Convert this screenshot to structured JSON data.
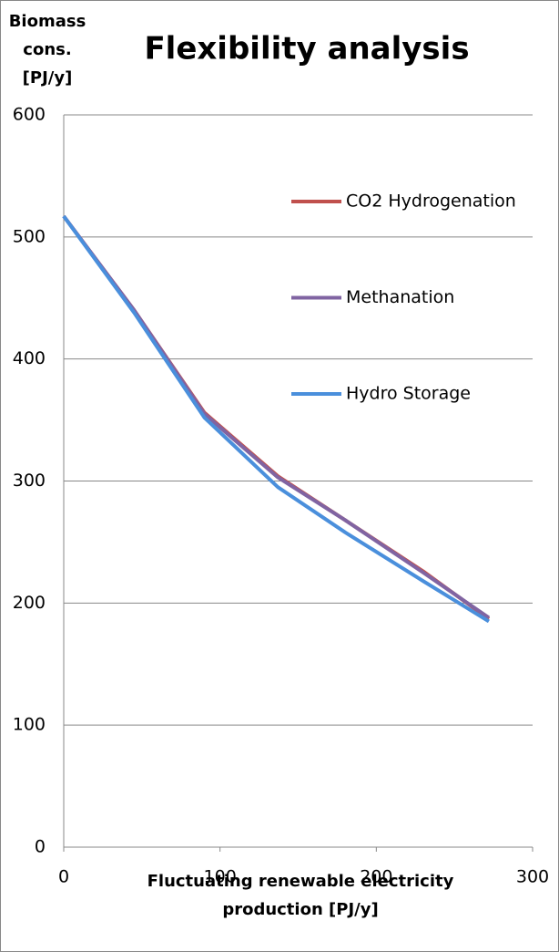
{
  "chart_data": {
    "type": "line",
    "title": "Flexibility analysis",
    "y_label": [
      "Biomass",
      "cons.",
      "[PJ/y]"
    ],
    "x_label": [
      "Fluctuating renewable electricity",
      "production [PJ/y]"
    ],
    "x": [
      0,
      45,
      90,
      137,
      180,
      230,
      272
    ],
    "series": [
      {
        "name": "CO2 Hydrogenation",
        "color": "#c0504d",
        "values": [
          517,
          440,
          356,
          304,
          268,
          226,
          187
        ]
      },
      {
        "name": "Methanation",
        "color": "#8064a2",
        "values": [
          517,
          440,
          355,
          303,
          268,
          225,
          188
        ]
      },
      {
        "name": "Hydro Storage",
        "color": "#4a8fdc",
        "values": [
          517,
          438,
          352,
          295,
          258,
          218,
          185
        ]
      }
    ],
    "xlim": [
      0,
      300
    ],
    "xticks": [
      0,
      100,
      200,
      300
    ],
    "ylim": [
      0,
      600
    ],
    "yticks": [
      0,
      100,
      200,
      300,
      400,
      500,
      600
    ],
    "grid": true,
    "legend": "right"
  }
}
